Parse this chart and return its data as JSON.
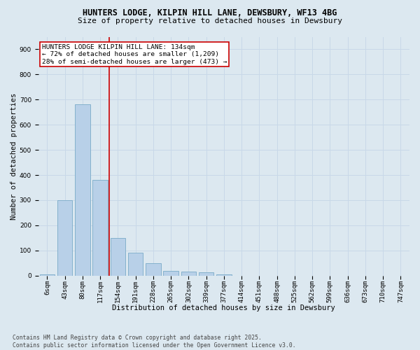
{
  "title_line1": "HUNTERS LODGE, KILPIN HILL LANE, DEWSBURY, WF13 4BG",
  "title_line2": "Size of property relative to detached houses in Dewsbury",
  "xlabel": "Distribution of detached houses by size in Dewsbury",
  "ylabel": "Number of detached properties",
  "bar_labels": [
    "6sqm",
    "43sqm",
    "80sqm",
    "117sqm",
    "154sqm",
    "191sqm",
    "228sqm",
    "265sqm",
    "302sqm",
    "339sqm",
    "377sqm",
    "414sqm",
    "451sqm",
    "488sqm",
    "525sqm",
    "562sqm",
    "599sqm",
    "636sqm",
    "673sqm",
    "710sqm",
    "747sqm"
  ],
  "bar_values": [
    5,
    300,
    680,
    380,
    150,
    90,
    50,
    20,
    15,
    12,
    5,
    0,
    0,
    0,
    0,
    0,
    0,
    0,
    0,
    0,
    0
  ],
  "bar_color": "#b8d0e8",
  "bar_edge_color": "#7aaac8",
  "vline_x_index": 3.5,
  "vline_color": "#cc0000",
  "annotation_text": "HUNTERS LODGE KILPIN HILL LANE: 134sqm\n← 72% of detached houses are smaller (1,209)\n28% of semi-detached houses are larger (473) →",
  "annotation_box_color": "#ffffff",
  "annotation_box_edge": "#cc0000",
  "ylim": [
    0,
    950
  ],
  "yticks": [
    0,
    100,
    200,
    300,
    400,
    500,
    600,
    700,
    800,
    900
  ],
  "grid_color": "#c8d8e8",
  "bg_color": "#dce8f0",
  "plot_bg_color": "#dce8f0",
  "footnote": "Contains HM Land Registry data © Crown copyright and database right 2025.\nContains public sector information licensed under the Open Government Licence v3.0.",
  "title_fontsize": 8.5,
  "title2_fontsize": 8.0,
  "axis_label_fontsize": 7.5,
  "tick_fontsize": 6.5,
  "annotation_fontsize": 6.8,
  "footnote_fontsize": 5.8
}
